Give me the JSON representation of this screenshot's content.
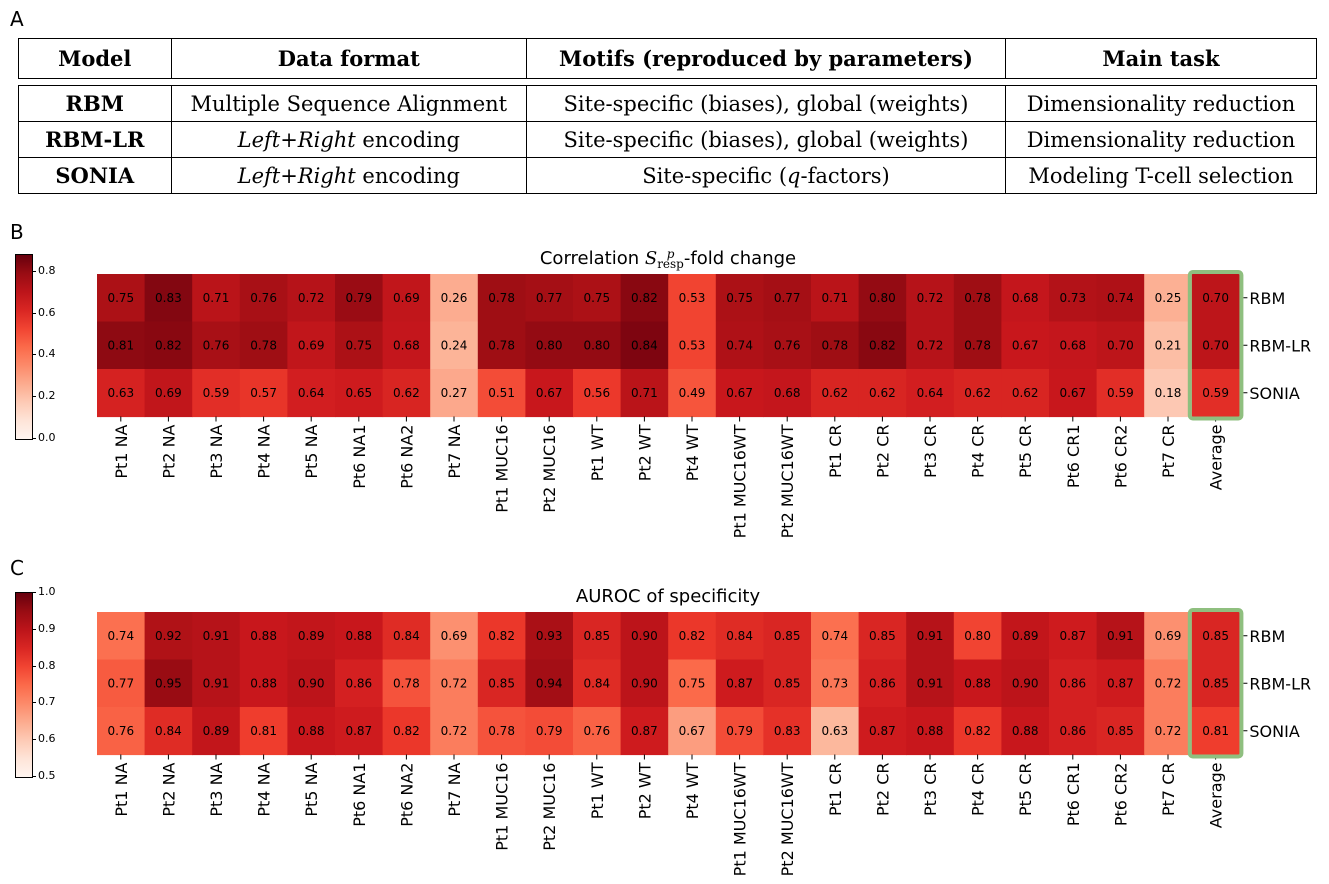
{
  "panel_labels": {
    "a": "A",
    "b": "B",
    "c": "C"
  },
  "table": {
    "headers": [
      "Model",
      "Data format",
      "Motifs (reproduced by parameters)",
      "Main task"
    ],
    "rows": [
      {
        "model": "RBM",
        "format_pre": "",
        "format_em": "",
        "format_post": "Multiple Sequence Alignment",
        "motifs": "Site-specific (biases), global (weights)",
        "task": "Dimensionality reduction"
      },
      {
        "model": "RBM-LR",
        "format_pre": "",
        "format_em": "Left+Right",
        "format_post": " encoding",
        "motifs": "Site-specific (biases), global (weights)",
        "task": "Dimensionality reduction"
      },
      {
        "model": "SONIA",
        "format_pre": "",
        "format_em": "Left+Right",
        "format_post": " encoding",
        "motifs_pre": "Site-specific (",
        "motifs_em": "q",
        "motifs_post": "-factors)",
        "task": "Modeling T-cell selection"
      }
    ]
  },
  "colors": {
    "highlight": "#8fbf7f",
    "low": "#fff5f0",
    "high": "#67000d"
  },
  "chart_data": [
    {
      "type": "heatmap",
      "title_pre": "Correlation ",
      "title_symbol": "S",
      "title_sup": "p",
      "title_sub": "resp",
      "title_post": "-fold change",
      "rows": [
        "RBM",
        "RBM-LR",
        "SONIA"
      ],
      "columns": [
        "Pt1 NA",
        "Pt2 NA",
        "Pt3 NA",
        "Pt4 NA",
        "Pt5 NA",
        "Pt6 NA1",
        "Pt6 NA2",
        "Pt7 NA",
        "Pt1 MUC16",
        "Pt2 MUC16",
        "Pt1 WT",
        "Pt2 WT",
        "Pt4 WT",
        "Pt1 MUC16WT",
        "Pt2 MUC16WT",
        "Pt1 CR",
        "Pt2 CR",
        "Pt3 CR",
        "Pt4 CR",
        "Pt5 CR",
        "Pt6 CR1",
        "Pt6 CR2",
        "Pt7 CR",
        "Average"
      ],
      "values": [
        [
          "0.75",
          "0.83",
          "0.71",
          "0.76",
          "0.72",
          "0.79",
          "0.69",
          "0.26",
          "0.78",
          "0.77",
          "0.75",
          "0.82",
          "0.53",
          "0.75",
          "0.77",
          "0.71",
          "0.80",
          "0.72",
          "0.78",
          "0.68",
          "0.73",
          "0.74",
          "0.25",
          "0.70"
        ],
        [
          "0.81",
          "0.82",
          "0.76",
          "0.78",
          "0.69",
          "0.75",
          "0.68",
          "0.24",
          "0.78",
          "0.80",
          "0.80",
          "0.84",
          "0.53",
          "0.74",
          "0.76",
          "0.78",
          "0.82",
          "0.72",
          "0.78",
          "0.67",
          "0.68",
          "0.70",
          "0.21",
          "0.70"
        ],
        [
          "0.63",
          "0.69",
          "0.59",
          "0.57",
          "0.64",
          "0.65",
          "0.62",
          "0.27",
          "0.51",
          "0.67",
          "0.56",
          "0.71",
          "0.49",
          "0.67",
          "0.68",
          "0.62",
          "0.62",
          "0.64",
          "0.62",
          "0.62",
          "0.67",
          "0.59",
          "0.18",
          "0.59"
        ]
      ],
      "colorbar": {
        "min": 0.0,
        "max": 0.88,
        "ticks": [
          "0.0",
          "0.2",
          "0.4",
          "0.6",
          "0.8"
        ]
      },
      "highlight_column": "Average"
    },
    {
      "type": "heatmap",
      "title": "AUROC of specificity",
      "rows": [
        "RBM",
        "RBM-LR",
        "SONIA"
      ],
      "columns": [
        "Pt1 NA",
        "Pt2 NA",
        "Pt3 NA",
        "Pt4 NA",
        "Pt5 NA",
        "Pt6 NA1",
        "Pt6 NA2",
        "Pt7 NA",
        "Pt1 MUC16",
        "Pt2 MUC16",
        "Pt1 WT",
        "Pt2 WT",
        "Pt4 WT",
        "Pt1 MUC16WT",
        "Pt2 MUC16WT",
        "Pt1 CR",
        "Pt2 CR",
        "Pt3 CR",
        "Pt4 CR",
        "Pt5 CR",
        "Pt6 CR1",
        "Pt6 CR2",
        "Pt7 CR",
        "Average"
      ],
      "values": [
        [
          "0.74",
          "0.92",
          "0.91",
          "0.88",
          "0.89",
          "0.88",
          "0.84",
          "0.69",
          "0.82",
          "0.93",
          "0.85",
          "0.90",
          "0.82",
          "0.84",
          "0.85",
          "0.74",
          "0.85",
          "0.91",
          "0.80",
          "0.89",
          "0.87",
          "0.91",
          "0.69",
          "0.85"
        ],
        [
          "0.77",
          "0.95",
          "0.91",
          "0.88",
          "0.90",
          "0.86",
          "0.78",
          "0.72",
          "0.85",
          "0.94",
          "0.84",
          "0.90",
          "0.75",
          "0.87",
          "0.85",
          "0.73",
          "0.86",
          "0.91",
          "0.88",
          "0.90",
          "0.86",
          "0.87",
          "0.72",
          "0.85"
        ],
        [
          "0.76",
          "0.84",
          "0.89",
          "0.81",
          "0.88",
          "0.87",
          "0.82",
          "0.72",
          "0.78",
          "0.79",
          "0.76",
          "0.87",
          "0.67",
          "0.79",
          "0.83",
          "0.63",
          "0.87",
          "0.88",
          "0.82",
          "0.88",
          "0.86",
          "0.85",
          "0.72",
          "0.81"
        ]
      ],
      "colorbar": {
        "min": 0.5,
        "max": 1.0,
        "ticks": [
          "0.5",
          "0.6",
          "0.7",
          "0.8",
          "0.9",
          "1.0"
        ]
      },
      "highlight_column": "Average"
    }
  ]
}
